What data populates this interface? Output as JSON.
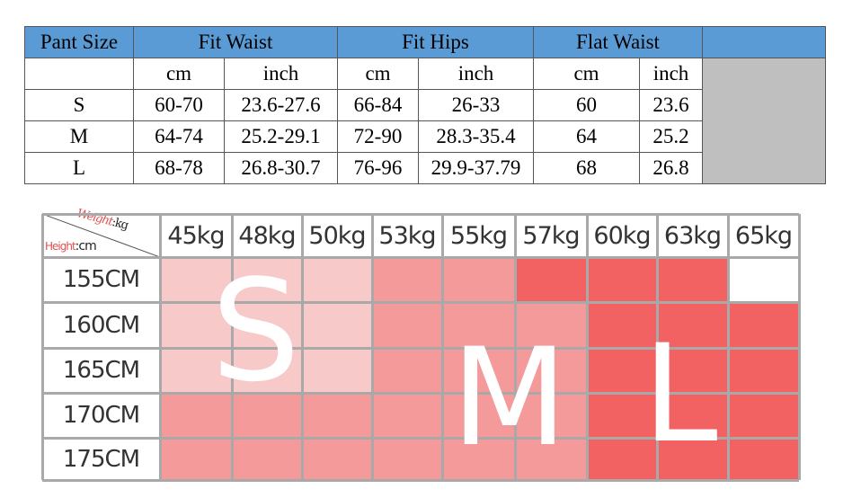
{
  "size_table": {
    "header": {
      "pant_size": "Pant Size",
      "fit_waist": "Fit Waist",
      "fit_hips": "Fit Hips",
      "flat_waist": "Flat Waist"
    },
    "units": [
      "cm",
      "inch",
      "cm",
      "inch",
      "cm",
      "inch"
    ],
    "rows": [
      {
        "size": "S",
        "values": [
          "60-70",
          "23.6-27.6",
          "66-84",
          "26-33",
          "60",
          "23.6"
        ]
      },
      {
        "size": "M",
        "values": [
          "64-74",
          "25.2-29.1",
          "72-90",
          "28.3-35.4",
          "64",
          "25.2"
        ]
      },
      {
        "size": "L",
        "values": [
          "68-78",
          "26.8-30.7",
          "76-96",
          "29.9-37.79",
          "68",
          "26.8"
        ]
      }
    ],
    "colors": {
      "header": "#5b9bd5",
      "filler": "#bfbfbf"
    }
  },
  "size_chart": {
    "corner": {
      "weight_label": "Weight",
      "weight_unit": ":kg",
      "height_label": "Height",
      "height_unit": ":cm"
    },
    "weights": [
      "45kg",
      "48kg",
      "50kg",
      "53kg",
      "55kg",
      "57kg",
      "60kg",
      "63kg",
      "65kg"
    ],
    "heights": [
      "155CM",
      "160CM",
      "165CM",
      "170CM",
      "175CM"
    ],
    "grid": [
      [
        "S",
        "S",
        "S",
        "M",
        "M",
        "L",
        "L",
        "L",
        "none"
      ],
      [
        "S",
        "S",
        "S",
        "M",
        "M",
        "M",
        "L",
        "L",
        "L"
      ],
      [
        "S",
        "S",
        "S",
        "M",
        "M",
        "M",
        "L",
        "L",
        "L"
      ],
      [
        "M",
        "M",
        "M",
        "M",
        "M",
        "M",
        "L",
        "L",
        "L"
      ],
      [
        "M",
        "M",
        "M",
        "M",
        "M",
        "M",
        "L",
        "L",
        "L"
      ]
    ],
    "size_colors": {
      "S": "#f8c9c9",
      "M": "#f59a9a",
      "L": "#f26262",
      "none": "#ffffff"
    },
    "letters": {
      "s": "S",
      "m": "M",
      "l": "L"
    }
  }
}
